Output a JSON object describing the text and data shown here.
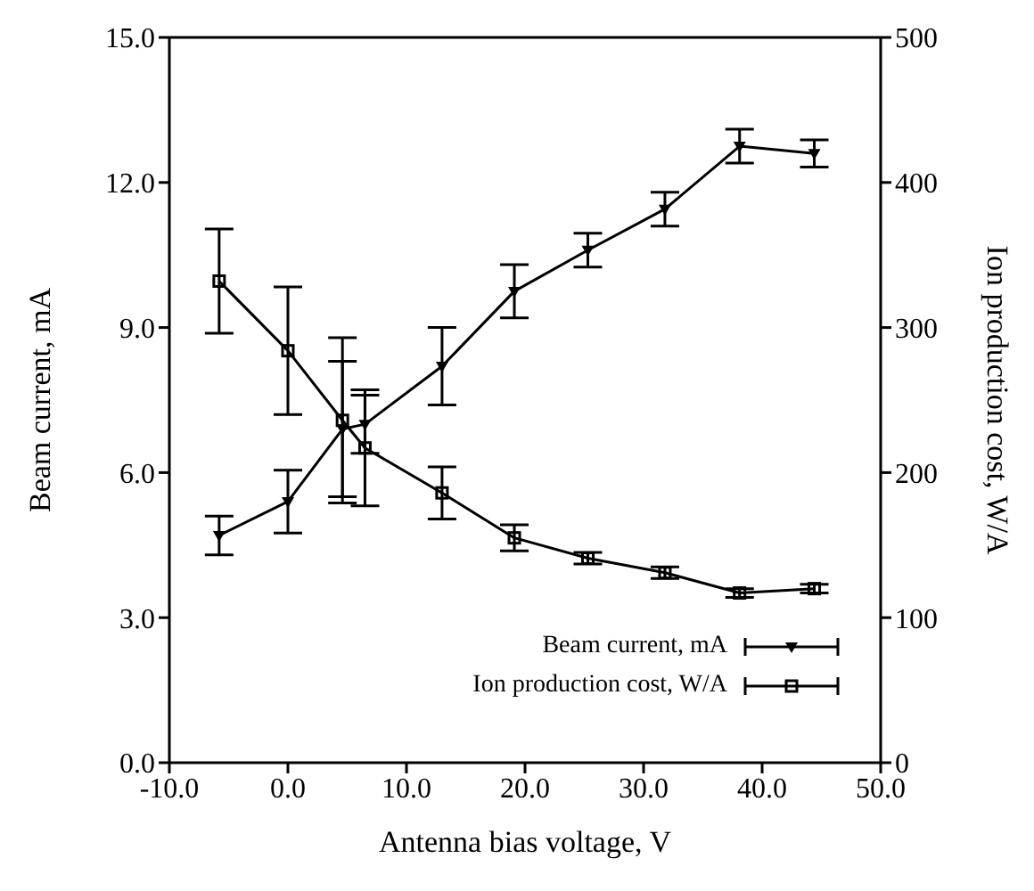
{
  "chart_data": {
    "type": "line",
    "xlabel": "Antenna bias voltage, V",
    "ylabel": "Beam current, mA",
    "y2label": "Ion production cost, W/A",
    "xlim": [
      -10,
      50
    ],
    "xticks": [
      {
        "value": -10,
        "label": "-10.0"
      },
      {
        "value": 0,
        "label": "0.0"
      },
      {
        "value": 10,
        "label": "10.0"
      },
      {
        "value": 20,
        "label": "20.0"
      },
      {
        "value": 30,
        "label": "30.0"
      },
      {
        "value": 40,
        "label": "40.0"
      },
      {
        "value": 50,
        "label": "50.0"
      }
    ],
    "ylim": [
      0,
      15
    ],
    "yticks": [
      {
        "value": 0,
        "label": "0.0"
      },
      {
        "value": 3,
        "label": "3.0"
      },
      {
        "value": 6,
        "label": "6.0"
      },
      {
        "value": 9,
        "label": "9.0"
      },
      {
        "value": 12,
        "label": "12.0"
      },
      {
        "value": 15,
        "label": "15.0"
      }
    ],
    "y2lim": [
      0,
      500
    ],
    "y2ticks": [
      0,
      100,
      200,
      300,
      400,
      500
    ],
    "x": [
      -5.8,
      0,
      4.6,
      6.5,
      13,
      19.1,
      25.3,
      31.8,
      38.1,
      44.4
    ],
    "series": [
      {
        "name": "Beam current, mA",
        "color": "#000000",
        "marker": "triangle",
        "values": [
          4.7,
          5.4,
          6.9,
          7.0,
          8.2,
          9.75,
          10.6,
          11.45,
          12.75,
          12.6
        ],
        "errors": [
          0.4,
          0.65,
          1.4,
          0.6,
          0.8,
          0.55,
          0.35,
          0.35,
          0.35,
          0.28
        ]
      },
      {
        "name": "Ion production cost, W/A",
        "color": "#000000",
        "marker": "square",
        "axis": "y2",
        "values": [
          332,
          284,
          236,
          217,
          186,
          155,
          141,
          131,
          117,
          120
        ],
        "errors": [
          36,
          44,
          57,
          40,
          18,
          9,
          4,
          4,
          3,
          3
        ]
      }
    ],
    "legend": "bottom right",
    "grid": false,
    "line_style": "solid"
  }
}
